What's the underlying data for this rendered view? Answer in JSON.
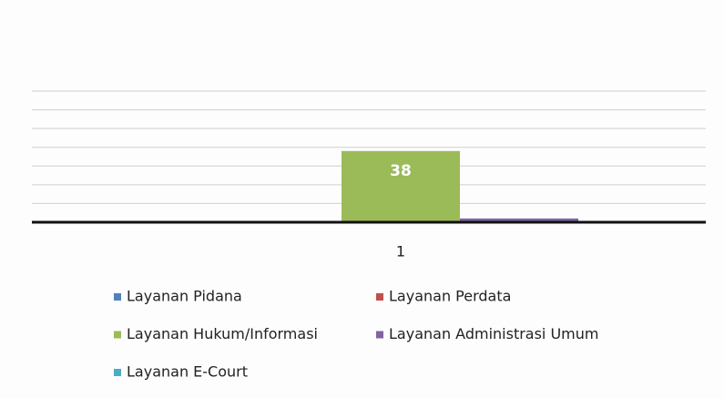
{
  "chart_data": {
    "type": "bar",
    "categories": [
      "1"
    ],
    "series": [
      {
        "name": "Layanan Pidana",
        "color": "#4f81bd",
        "values": [
          0
        ]
      },
      {
        "name": "Layanan Perdata",
        "color": "#c0504d",
        "values": [
          0
        ]
      },
      {
        "name": "Layanan Hukum/Informasi",
        "color": "#9bbb59",
        "values": [
          38
        ],
        "show_value_labels": true
      },
      {
        "name": "Layanan Administrasi Umum",
        "color": "#8064a2",
        "values": [
          2
        ]
      },
      {
        "name": "Layanan E-Court",
        "color": "#4bacc6",
        "values": [
          0
        ]
      }
    ],
    "ylim": [
      0,
      70
    ],
    "yticks": [
      0,
      10,
      20,
      30,
      40,
      50,
      60,
      70
    ],
    "grid": true,
    "legend": "bottom"
  }
}
